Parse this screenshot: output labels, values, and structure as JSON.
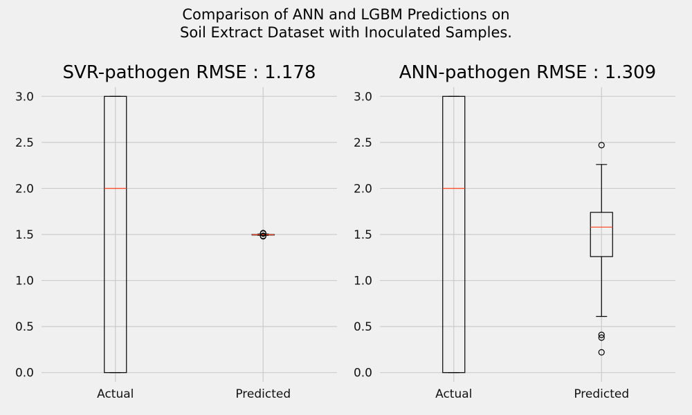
{
  "figure": {
    "title": "Comparison of ANN and LGBM Predictions on\nSoil Extract Dataset with Inoculated Samples."
  },
  "colors": {
    "background": "#f0f0f0",
    "grid": "#cbcbcb",
    "box": "#000000",
    "median": "#fc4f30"
  },
  "chart_data": [
    {
      "type": "boxplot",
      "title": "SVR-pathogen RMSE : 1.178",
      "categories": [
        "Actual",
        "Predicted"
      ],
      "ylim": [
        -0.1,
        3.1
      ],
      "yticks": [
        "0.0",
        "0.5",
        "1.0",
        "1.5",
        "2.0",
        "2.5",
        "3.0"
      ],
      "grid": true,
      "boxes": [
        {
          "label": "Actual",
          "min": 0.0,
          "q1": 0.0,
          "median": 2.0,
          "q3": 3.0,
          "max": 3.0,
          "fliers": []
        },
        {
          "label": "Predicted",
          "min": 1.49,
          "q1": 1.495,
          "median": 1.497,
          "q3": 1.5,
          "max": 1.505,
          "fliers": [
            1.48,
            1.485,
            1.51,
            1.515
          ]
        }
      ]
    },
    {
      "type": "boxplot",
      "title": "ANN-pathogen RMSE : 1.309",
      "categories": [
        "Actual",
        "Predicted"
      ],
      "ylim": [
        -0.1,
        3.1
      ],
      "yticks": [
        "0.0",
        "0.5",
        "1.0",
        "1.5",
        "2.0",
        "2.5",
        "3.0"
      ],
      "grid": true,
      "boxes": [
        {
          "label": "Actual",
          "min": 0.0,
          "q1": 0.0,
          "median": 2.0,
          "q3": 3.0,
          "max": 3.0,
          "fliers": []
        },
        {
          "label": "Predicted",
          "min": 0.61,
          "q1": 1.26,
          "median": 1.58,
          "q3": 1.74,
          "max": 2.26,
          "fliers": [
            2.47,
            0.41,
            0.38,
            0.22
          ]
        }
      ]
    }
  ]
}
